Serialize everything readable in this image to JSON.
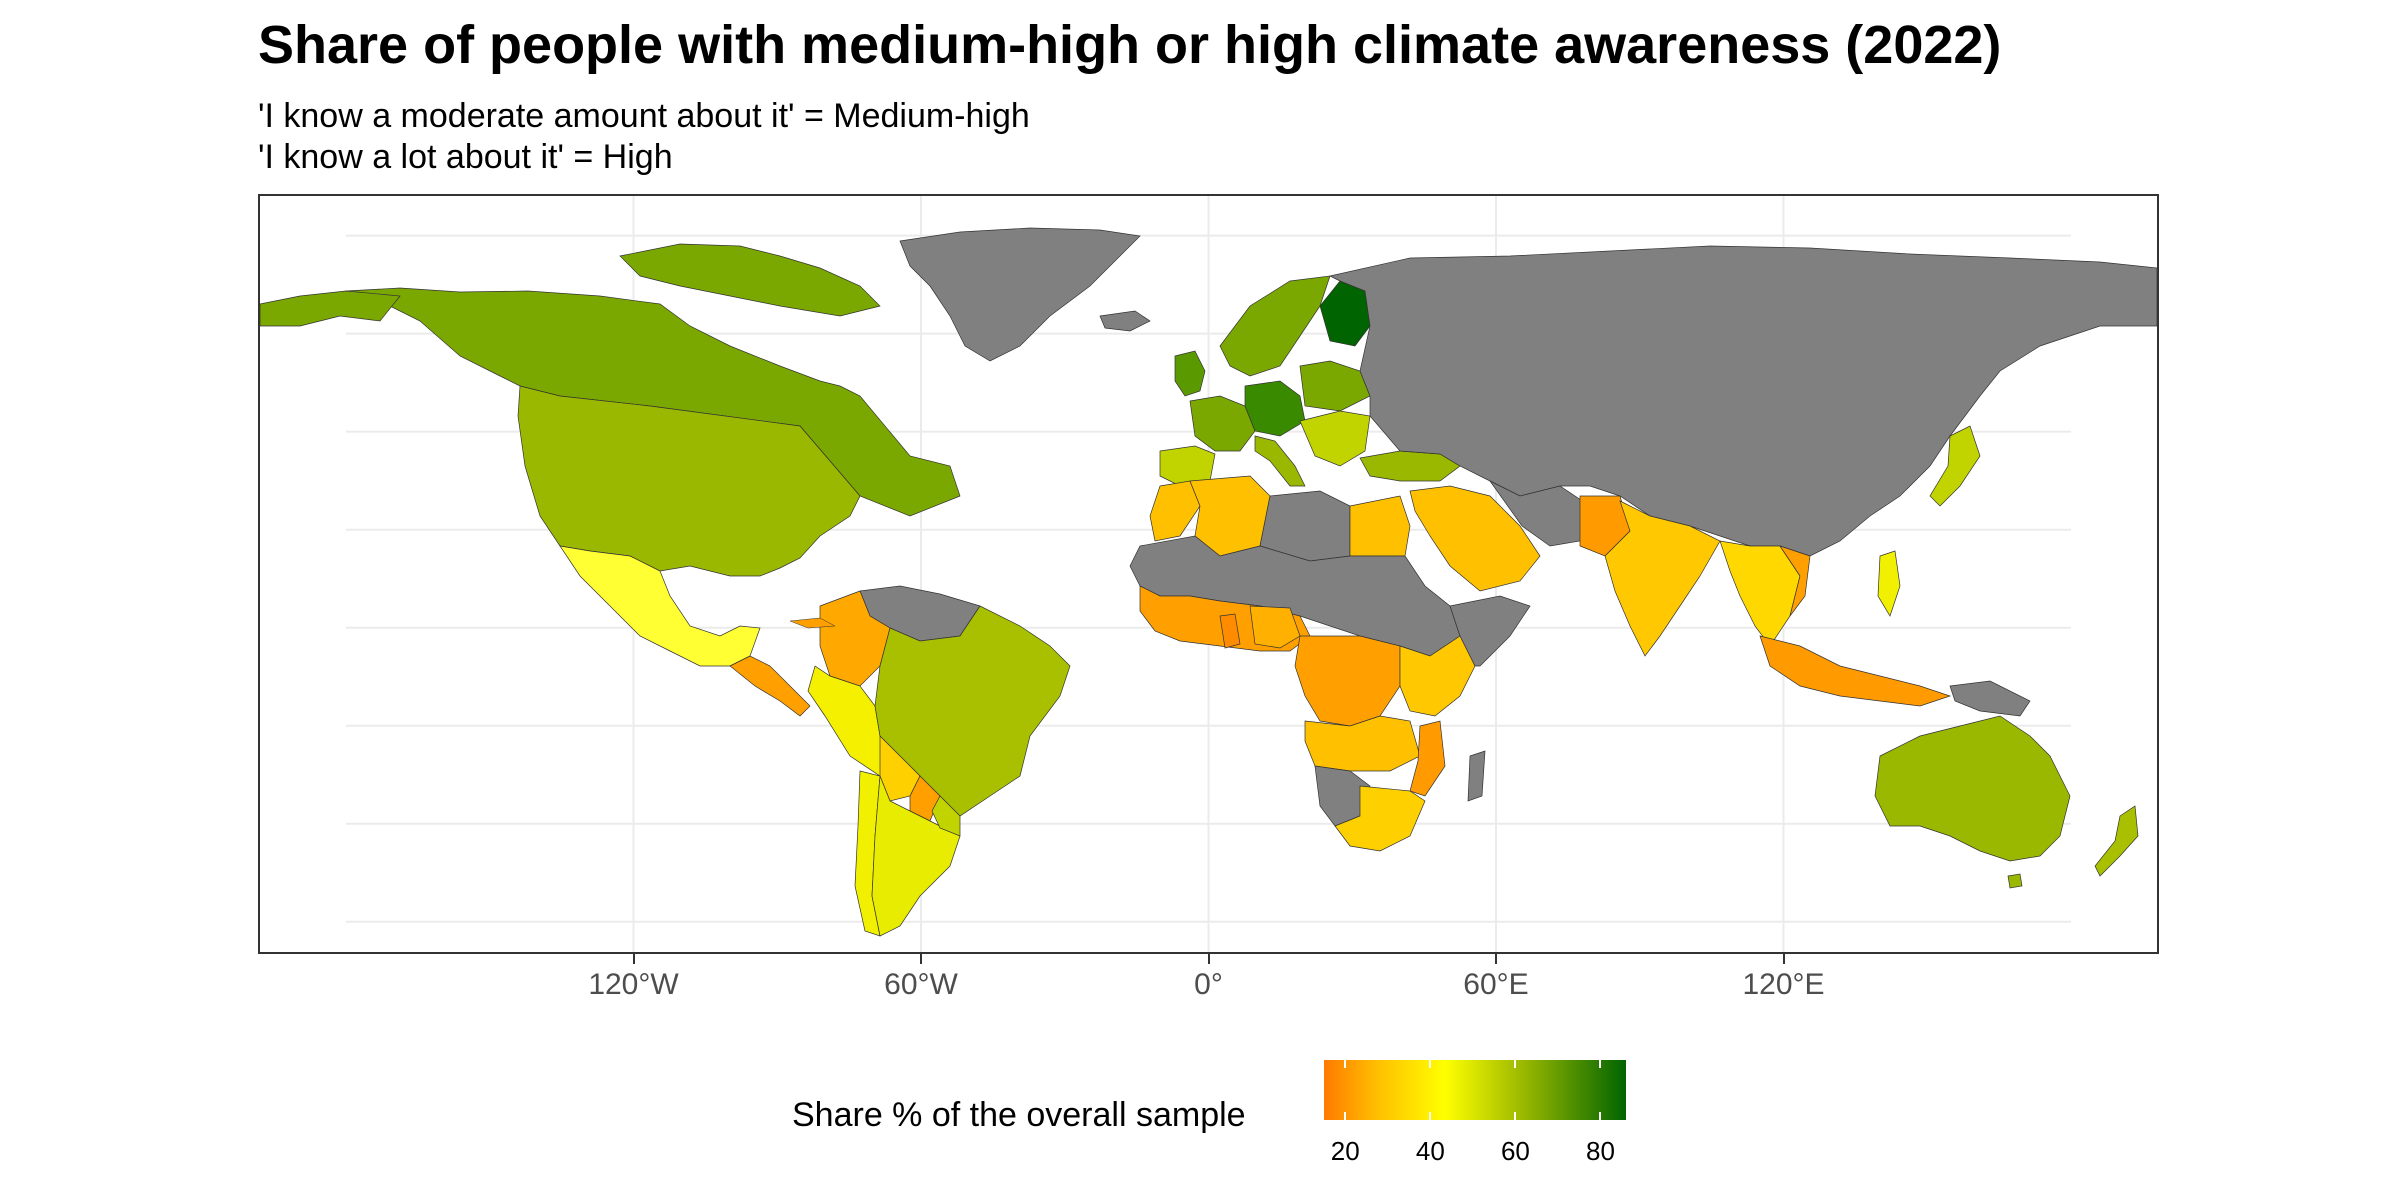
{
  "title": "Share of people with medium-high or high climate awareness (2022)",
  "subtitle": [
    "'I know a moderate amount about it' = Medium-high",
    "'I know a lot about it' = High"
  ],
  "axis": {
    "x_ticks": [
      "120°W",
      "60°W",
      "0°",
      "60°E",
      "120°E"
    ],
    "x_values": [
      -120,
      -60,
      0,
      60,
      120
    ],
    "lon_range": [
      -180,
      180
    ],
    "lat_range": [
      -58,
      84
    ]
  },
  "legend": {
    "title": "Share % of the overall sample",
    "ticks": [
      "20",
      "40",
      "60",
      "80"
    ],
    "tick_values": [
      20,
      40,
      60,
      80
    ],
    "range": [
      15,
      86
    ],
    "colors": [
      "#ff7a00",
      "#ffc000",
      "#ffff00",
      "#9ab800",
      "#006400"
    ],
    "no_data_color": "#808080"
  },
  "colors": {
    "high": "#006400",
    "green_mid": "#3a8a00",
    "olive": "#7aa800",
    "yellow_green": "#c2d400",
    "yellow": "#ffff00",
    "orange_yellow": "#ffc000",
    "orange": "#ff8c00",
    "no_data": "#808080",
    "grid": "#ebebeb"
  },
  "chart_data": {
    "type": "choropleth",
    "title": "Share of people with medium-high or high climate awareness (2022)",
    "value_label": "Share % of the overall sample",
    "regions": [
      {
        "name": "Canada",
        "value": 70
      },
      {
        "name": "United States",
        "value": 65
      },
      {
        "name": "Mexico",
        "value": 42
      },
      {
        "name": "Guatemala",
        "value": 28
      },
      {
        "name": "Colombia",
        "value": 30
      },
      {
        "name": "Peru",
        "value": 40
      },
      {
        "name": "Brazil",
        "value": 60
      },
      {
        "name": "Bolivia",
        "value": 35
      },
      {
        "name": "Argentina",
        "value": 45
      },
      {
        "name": "Chile",
        "value": 42
      },
      {
        "name": "Paraguay",
        "value": 30
      },
      {
        "name": "Uruguay",
        "value": 50
      },
      {
        "name": "Norway",
        "value": 75
      },
      {
        "name": "Sweden",
        "value": 72
      },
      {
        "name": "Finland",
        "value": 90
      },
      {
        "name": "United Kingdom",
        "value": 68
      },
      {
        "name": "Germany",
        "value": 80
      },
      {
        "name": "Austria",
        "value": 82
      },
      {
        "name": "France",
        "value": 68
      },
      {
        "name": "Spain",
        "value": 50
      },
      {
        "name": "Italy",
        "value": 58
      },
      {
        "name": "Poland",
        "value": 70
      },
      {
        "name": "Turkey",
        "value": 62
      },
      {
        "name": "Morocco",
        "value": 40
      },
      {
        "name": "Algeria",
        "value": 38
      },
      {
        "name": "Egypt",
        "value": 38
      },
      {
        "name": "Saudi Arabia",
        "value": 35
      },
      {
        "name": "Nigeria",
        "value": 30
      },
      {
        "name": "Ghana",
        "value": 25
      },
      {
        "name": "DR Congo",
        "value": 28
      },
      {
        "name": "Kenya",
        "value": 35
      },
      {
        "name": "Tanzania",
        "value": 30
      },
      {
        "name": "Mozambique",
        "value": 25
      },
      {
        "name": "South Africa",
        "value": 40
      },
      {
        "name": "India",
        "value": 38
      },
      {
        "name": "Pakistan",
        "value": 28
      },
      {
        "name": "Thailand",
        "value": 35
      },
      {
        "name": "Vietnam",
        "value": 30
      },
      {
        "name": "Philippines",
        "value": 42
      },
      {
        "name": "Indonesia",
        "value": 30
      },
      {
        "name": "Japan",
        "value": 52
      },
      {
        "name": "Australia",
        "value": 65
      },
      {
        "name": "New Zealand",
        "value": 60
      }
    ]
  }
}
